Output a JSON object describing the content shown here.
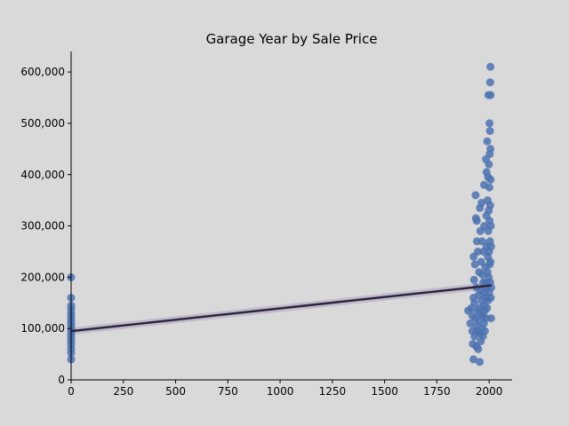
{
  "chart_data": {
    "type": "scatter",
    "title": "Garage Year by Sale Price",
    "xlabel": "",
    "ylabel": "",
    "xlim": [
      0,
      2110
    ],
    "ylim": [
      0,
      640000
    ],
    "x_ticks": [
      0,
      250,
      500,
      750,
      1000,
      1250,
      1500,
      1750,
      2000
    ],
    "x_tick_labels": [
      "0",
      "250",
      "500",
      "750",
      "1000",
      "1250",
      "1500",
      "1750",
      "2000"
    ],
    "y_ticks": [
      0,
      100000,
      200000,
      300000,
      400000,
      500000,
      600000
    ],
    "y_tick_labels": [
      "0",
      "100,000",
      "200,000",
      "300,000",
      "400,000",
      "500,000",
      "600,000"
    ],
    "grid": false,
    "colors": {
      "points": "#4c72b0",
      "trend": "#2e2540",
      "band": "#b0a8c0",
      "background": "#d9d9d9",
      "plot_background": "#d9d9d9"
    },
    "points": [
      [
        0,
        40000
      ],
      [
        0,
        52000
      ],
      [
        0,
        60000
      ],
      [
        0,
        68000
      ],
      [
        0,
        75000
      ],
      [
        0,
        82000
      ],
      [
        0,
        88000
      ],
      [
        0,
        94000
      ],
      [
        0,
        100000
      ],
      [
        0,
        106000
      ],
      [
        0,
        112000
      ],
      [
        0,
        118000
      ],
      [
        0,
        124000
      ],
      [
        0,
        130000
      ],
      [
        0,
        138000
      ],
      [
        0,
        145000
      ],
      [
        0,
        160000
      ],
      [
        0,
        200000
      ],
      [
        1900,
        135000
      ],
      [
        1910,
        110000
      ],
      [
        1915,
        140000
      ],
      [
        1920,
        95000
      ],
      [
        1920,
        125000
      ],
      [
        1922,
        70000
      ],
      [
        1925,
        40000
      ],
      [
        1925,
        160000
      ],
      [
        1926,
        240000
      ],
      [
        1928,
        195000
      ],
      [
        1930,
        85000
      ],
      [
        1930,
        150000
      ],
      [
        1932,
        225000
      ],
      [
        1935,
        120000
      ],
      [
        1935,
        360000
      ],
      [
        1937,
        315000
      ],
      [
        1939,
        65000
      ],
      [
        1940,
        105000
      ],
      [
        1940,
        180000
      ],
      [
        1941,
        310000
      ],
      [
        1942,
        270000
      ],
      [
        1945,
        95000
      ],
      [
        1945,
        135000
      ],
      [
        1946,
        250000
      ],
      [
        1948,
        60000
      ],
      [
        1950,
        115000
      ],
      [
        1950,
        165000
      ],
      [
        1952,
        210000
      ],
      [
        1955,
        35000
      ],
      [
        1955,
        90000
      ],
      [
        1955,
        140000
      ],
      [
        1956,
        335000
      ],
      [
        1958,
        290000
      ],
      [
        1960,
        75000
      ],
      [
        1960,
        130000
      ],
      [
        1960,
        175000
      ],
      [
        1962,
        230000
      ],
      [
        1964,
        345000
      ],
      [
        1965,
        100000
      ],
      [
        1965,
        155000
      ],
      [
        1967,
        270000
      ],
      [
        1968,
        205000
      ],
      [
        1970,
        85000
      ],
      [
        1970,
        125000
      ],
      [
        1972,
        190000
      ],
      [
        1973,
        250000
      ],
      [
        1975,
        110000
      ],
      [
        1975,
        145000
      ],
      [
        1976,
        380000
      ],
      [
        1977,
        300000
      ],
      [
        1978,
        170000
      ],
      [
        1980,
        95000
      ],
      [
        1980,
        135000
      ],
      [
        1982,
        220000
      ],
      [
        1984,
        160000
      ],
      [
        1985,
        120000
      ],
      [
        1985,
        430000
      ],
      [
        1986,
        190000
      ],
      [
        1987,
        320000
      ],
      [
        1988,
        405000
      ],
      [
        1988,
        260000
      ],
      [
        1990,
        140000
      ],
      [
        1990,
        180000
      ],
      [
        1991,
        465000
      ],
      [
        1992,
        210000
      ],
      [
        1993,
        350000
      ],
      [
        1994,
        240000
      ],
      [
        1995,
        155000
      ],
      [
        1995,
        395000
      ],
      [
        1996,
        290000
      ],
      [
        1997,
        555000
      ],
      [
        1998,
        200000
      ],
      [
        1998,
        330000
      ],
      [
        1999,
        420000
      ],
      [
        2000,
        170000
      ],
      [
        2000,
        250000
      ],
      [
        2001,
        375000
      ],
      [
        2002,
        500000
      ],
      [
        2002,
        310000
      ],
      [
        2003,
        225000
      ],
      [
        2003,
        440000
      ],
      [
        2004,
        485000
      ],
      [
        2004,
        270000
      ],
      [
        2005,
        580000
      ],
      [
        2005,
        190000
      ],
      [
        2005,
        340000
      ],
      [
        2006,
        610000
      ],
      [
        2006,
        450000
      ],
      [
        2006,
        230000
      ],
      [
        2007,
        555000
      ],
      [
        2007,
        390000
      ],
      [
        2008,
        160000
      ],
      [
        2008,
        300000
      ],
      [
        2009,
        120000
      ],
      [
        2009,
        260000
      ],
      [
        2010,
        180000
      ]
    ],
    "trend_line": {
      "x": [
        0,
        2010
      ],
      "y": [
        95000,
        184000
      ]
    }
  }
}
